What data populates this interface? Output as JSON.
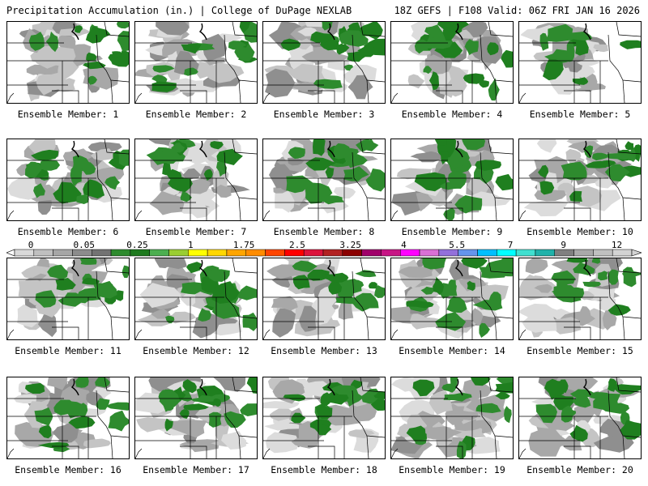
{
  "header": {
    "left_title": "Precipitation Accumulation (in.) | College of DuPage NEXLAB",
    "right_title": "18Z GEFS | F108 Valid: 06Z FRI JAN 16 2026"
  },
  "panels": [
    {
      "label": "Ensemble Member: 1",
      "coverage": 0.45
    },
    {
      "label": "Ensemble Member: 2",
      "coverage": 0.4
    },
    {
      "label": "Ensemble Member: 3",
      "coverage": 0.6
    },
    {
      "label": "Ensemble Member: 4",
      "coverage": 0.55
    },
    {
      "label": "Ensemble Member: 5",
      "coverage": 0.25
    },
    {
      "label": "Ensemble Member: 6",
      "coverage": 0.55
    },
    {
      "label": "Ensemble Member: 7",
      "coverage": 0.45
    },
    {
      "label": "Ensemble Member: 8",
      "coverage": 0.55
    },
    {
      "label": "Ensemble Member: 9",
      "coverage": 0.5
    },
    {
      "label": "Ensemble Member: 10",
      "coverage": 0.5
    },
    {
      "label": "Ensemble Member: 11",
      "coverage": 0.4
    },
    {
      "label": "Ensemble Member: 12",
      "coverage": 0.5
    },
    {
      "label": "Ensemble Member: 13",
      "coverage": 0.45
    },
    {
      "label": "Ensemble Member: 14",
      "coverage": 0.6
    },
    {
      "label": "Ensemble Member: 15",
      "coverage": 0.45
    },
    {
      "label": "Ensemble Member: 16",
      "coverage": 0.45
    },
    {
      "label": "Ensemble Member: 17",
      "coverage": 0.6
    },
    {
      "label": "Ensemble Member: 18",
      "coverage": 0.6
    },
    {
      "label": "Ensemble Member: 19",
      "coverage": 0.5
    },
    {
      "label": "Ensemble Member: 20",
      "coverage": 0.55
    }
  ],
  "colorbar": {
    "labels": [
      "0",
      "0.05",
      "0.25",
      "1",
      "1.75",
      "2.5",
      "3.25",
      "4",
      "5.5",
      "7",
      "9",
      "12"
    ],
    "colors": [
      "#d9d9d9",
      "#bfbfbf",
      "#a6a6a6",
      "#8c8c8c",
      "#737373",
      "#2e8b2e",
      "#1e7a1e",
      "#4caf50",
      "#9acd32",
      "#ffff00",
      "#ffd700",
      "#ffa500",
      "#ff8c00",
      "#ff4500",
      "#ff0000",
      "#dc143c",
      "#b22222",
      "#8b0000",
      "#a0006a",
      "#c71585",
      "#ff00ff",
      "#da70d6",
      "#9370db",
      "#6495ed",
      "#00bfff",
      "#00ffff",
      "#40e0d0",
      "#20b2aa",
      "#808080",
      "#a9a9a9",
      "#c0c0c0",
      "#d3d3d3"
    ]
  }
}
